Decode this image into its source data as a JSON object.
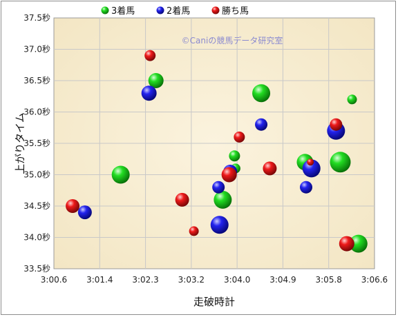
{
  "chart_data": {
    "type": "scatter",
    "xlabel": "走破時計",
    "ylabel": "上がりタイム",
    "watermark": "©Caniの競馬データ研究室",
    "x_ticks": [
      "3:00.6",
      "3:01.4",
      "3:02.3",
      "3:03.2",
      "3:04.0",
      "3:04.9",
      "3:05.8",
      "3:06.6"
    ],
    "y_ticks": [
      "33.5秒",
      "34.0秒",
      "34.5秒",
      "35.0秒",
      "35.5秒",
      "36.0秒",
      "36.5秒",
      "37.0秒",
      "37.5秒"
    ],
    "xlim": [
      180.6,
      186.6
    ],
    "ylim": [
      33.5,
      37.5
    ],
    "grid": true,
    "legend_position": "top",
    "series": [
      {
        "name": "3着馬",
        "color": "#11cc11",
        "points": [
          {
            "x": 181.85,
            "y": 35.0,
            "size": 13
          },
          {
            "x": 182.51,
            "y": 36.5,
            "size": 11
          },
          {
            "x": 183.76,
            "y": 34.6,
            "size": 13
          },
          {
            "x": 183.98,
            "y": 35.3,
            "size": 8
          },
          {
            "x": 184.0,
            "y": 35.1,
            "size": 7
          },
          {
            "x": 184.48,
            "y": 36.3,
            "size": 13
          },
          {
            "x": 185.3,
            "y": 35.2,
            "size": 12
          },
          {
            "x": 185.96,
            "y": 35.2,
            "size": 15
          },
          {
            "x": 186.18,
            "y": 36.2,
            "size": 7
          },
          {
            "x": 186.3,
            "y": 33.9,
            "size": 13
          }
        ]
      },
      {
        "name": "2着馬",
        "color": "#1a1aee",
        "points": [
          {
            "x": 181.18,
            "y": 34.4,
            "size": 10
          },
          {
            "x": 182.38,
            "y": 36.3,
            "size": 11
          },
          {
            "x": 183.68,
            "y": 34.8,
            "size": 9
          },
          {
            "x": 183.7,
            "y": 34.2,
            "size": 13
          },
          {
            "x": 183.9,
            "y": 35.05,
            "size": 10
          },
          {
            "x": 184.48,
            "y": 35.8,
            "size": 9
          },
          {
            "x": 185.32,
            "y": 34.8,
            "size": 9
          },
          {
            "x": 185.42,
            "y": 35.1,
            "size": 13
          },
          {
            "x": 185.88,
            "y": 35.7,
            "size": 13
          }
        ]
      },
      {
        "name": "勝ち馬",
        "color": "#ee1111",
        "points": [
          {
            "x": 180.95,
            "y": 34.5,
            "size": 10
          },
          {
            "x": 182.4,
            "y": 36.9,
            "size": 8
          },
          {
            "x": 183.0,
            "y": 34.6,
            "size": 10
          },
          {
            "x": 183.22,
            "y": 34.1,
            "size": 7
          },
          {
            "x": 183.88,
            "y": 35.0,
            "size": 11
          },
          {
            "x": 184.07,
            "y": 35.6,
            "size": 8
          },
          {
            "x": 184.64,
            "y": 35.1,
            "size": 10
          },
          {
            "x": 185.4,
            "y": 35.2,
            "size": 5
          },
          {
            "x": 185.88,
            "y": 35.8,
            "size": 9
          },
          {
            "x": 186.08,
            "y": 33.9,
            "size": 11
          }
        ]
      }
    ]
  }
}
